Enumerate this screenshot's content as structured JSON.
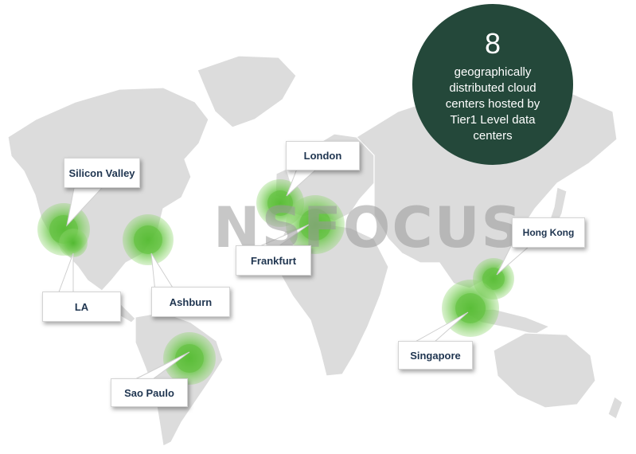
{
  "watermark": {
    "text": "NSFOCUS"
  },
  "badge": {
    "number": "8",
    "description": "geographically distributed cloud centers hosted by Tier1 Level data centers",
    "color": "#24483a"
  },
  "locations": [
    {
      "id": "silicon-valley",
      "label": "Silicon Valley"
    },
    {
      "id": "la",
      "label": "LA"
    },
    {
      "id": "ashburn",
      "label": "Ashburn"
    },
    {
      "id": "sao-paulo",
      "label": "Sao Paulo"
    },
    {
      "id": "london",
      "label": "London"
    },
    {
      "id": "frankfurt",
      "label": "Frankfurt"
    },
    {
      "id": "hong-kong",
      "label": "Hong Kong"
    },
    {
      "id": "singapore",
      "label": "Singapore"
    }
  ],
  "colors": {
    "marker": "#5cc038",
    "land": "#dcdcdc",
    "label_text": "#1f3550"
  }
}
